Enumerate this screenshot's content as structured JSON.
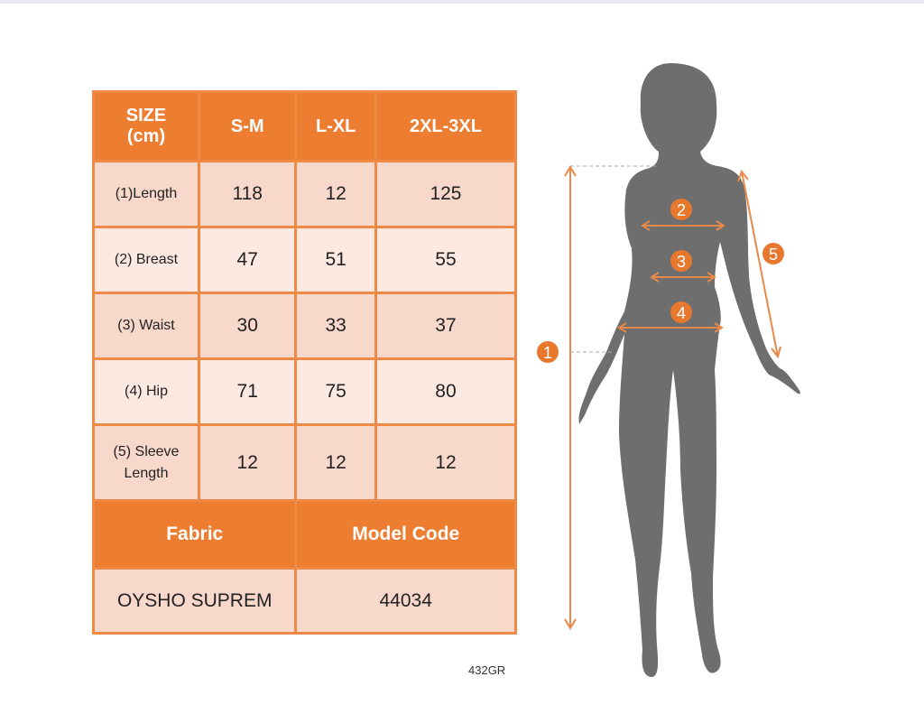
{
  "table": {
    "header": [
      "SIZE\n(cm)",
      "S-M",
      "L-XL",
      "2XL-3XL"
    ],
    "rows": [
      {
        "label": "(1)Length",
        "values": [
          "118",
          "12",
          "125"
        ]
      },
      {
        "label": "(2) Breast",
        "values": [
          "47",
          "51",
          "55"
        ]
      },
      {
        "label": "(3) Waist",
        "values": [
          "30",
          "33",
          "37"
        ]
      },
      {
        "label": "(4) Hip",
        "values": [
          "71",
          "75",
          "80"
        ]
      },
      {
        "label": "(5) Sleeve Length",
        "values": [
          "12",
          "12",
          "12"
        ]
      }
    ],
    "footer_headers": [
      "Fabric",
      "Model Code"
    ],
    "footer_values": [
      "OYSHO SUPREM",
      "44034"
    ]
  },
  "product_code": "432GR",
  "figure": {
    "markers": [
      "1",
      "2",
      "3",
      "4",
      "5"
    ]
  },
  "colors": {
    "accent": "#ED7D31",
    "row_dark": "#F8D8CA",
    "row_light": "#FBE9E2",
    "silhouette": "#6e6e6e"
  }
}
